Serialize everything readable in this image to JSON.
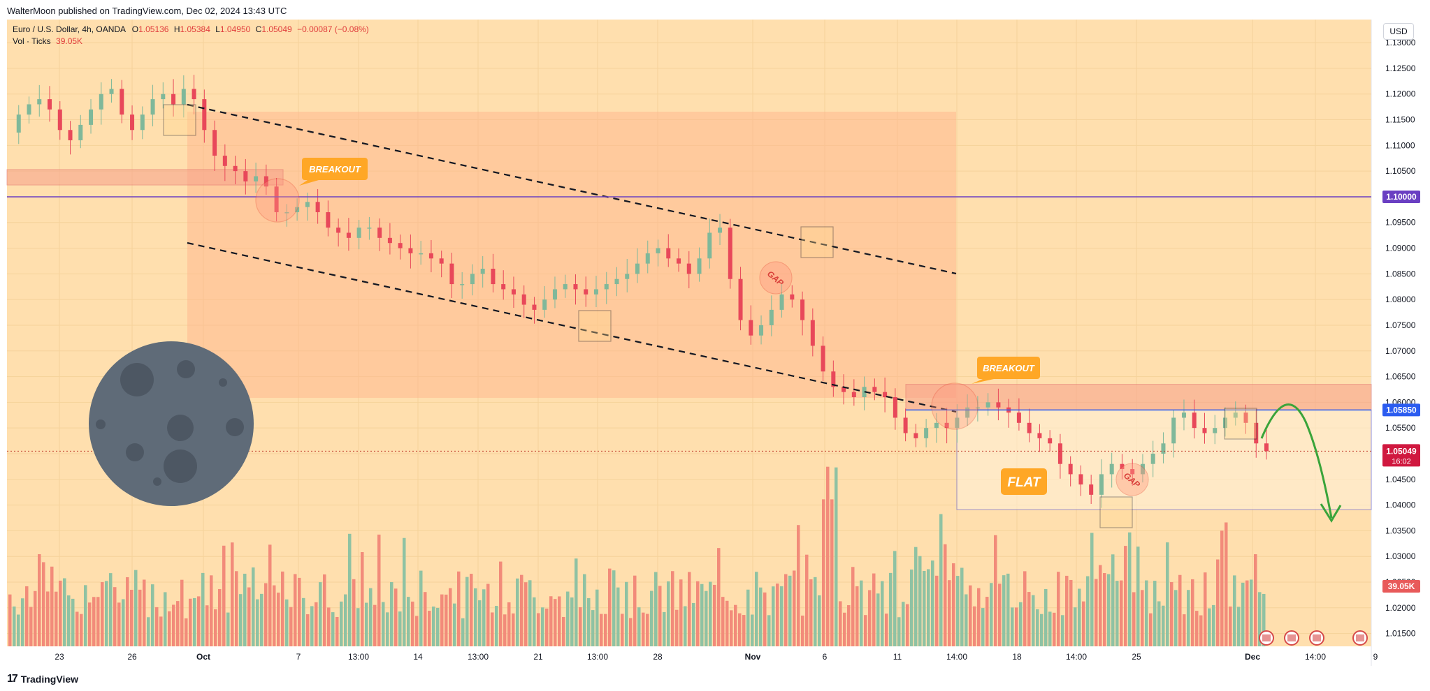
{
  "header": {
    "publisher": "WalterMoon published on TradingView.com, Dec 02, 2024 13:43 UTC"
  },
  "legend": {
    "symbol": "Euro / U.S. Dollar, 4h, OANDA",
    "open_label": "O",
    "open": "1.05136",
    "high_label": "H",
    "high": "1.05384",
    "low_label": "L",
    "low": "1.04950",
    "close_label": "C",
    "close": "1.05049",
    "change": "−0.00087 (−0.08%)",
    "vol_label": "Vol · Ticks",
    "vol": "39.05K"
  },
  "currency_button": "USD",
  "footer": {
    "brand": "TradingView",
    "brand_mark": "17"
  },
  "colors": {
    "up": "#7fb89a",
    "down": "#e8485a",
    "vol_up": "#8fc2a3",
    "vol_down": "#f28b7a",
    "background": "#ffdfae",
    "channel_fill": "#ffb28a",
    "zone_fill": "#f6a08a",
    "purple_line": "#6a3fc2",
    "blue_line": "#2b5cf0",
    "price_label": "#d0183f",
    "callout": "#ffa726",
    "arrow": "#3aa43a",
    "moon": "#5f6b78"
  },
  "chart_data": {
    "type": "candlestick",
    "symbol": "EUR/USD",
    "timeframe": "4h",
    "y_ticks": [
      "1.13000",
      "1.12500",
      "1.12000",
      "1.11500",
      "1.11000",
      "1.10500",
      "1.10000",
      "1.09500",
      "1.09000",
      "1.08500",
      "1.08000",
      "1.07500",
      "1.07000",
      "1.06500",
      "1.06000",
      "1.05500",
      "1.05000",
      "1.04500",
      "1.04000",
      "1.03500",
      "1.03000",
      "1.02500",
      "1.02000",
      "1.01500"
    ],
    "x_ticks": [
      "23",
      "26",
      "Oct",
      "7",
      "13:00",
      "14",
      "13:00",
      "21",
      "13:00",
      "28",
      "Nov",
      "6",
      "11",
      "14:00",
      "18",
      "14:00",
      "25",
      "Dec",
      "14:00",
      "9"
    ],
    "ylim": [
      1.0125,
      1.1345
    ],
    "price_labels": {
      "level_1": "1.10000",
      "level_2": "1.05850",
      "last": "1.05049",
      "countdown": "16:02",
      "volume": "39.05K"
    },
    "annotations": {
      "breakout_1": "BREAKOUT",
      "breakout_2": "BREAKOUT",
      "flat": "FLAT",
      "gap_1": "GAP",
      "gap_2": "GAP"
    },
    "candles_approx_close_path": [
      1.1125,
      1.116,
      1.118,
      1.119,
      1.117,
      1.113,
      1.111,
      1.114,
      1.117,
      1.12,
      1.121,
      1.116,
      1.113,
      1.116,
      1.119,
      1.12,
      1.118,
      1.121,
      1.119,
      1.113,
      1.108,
      1.106,
      1.105,
      1.103,
      1.104,
      1.102,
      1.097,
      1.097,
      1.098,
      1.099,
      1.097,
      1.094,
      1.093,
      1.092,
      1.094,
      1.094,
      1.092,
      1.091,
      1.09,
      1.089,
      1.089,
      1.088,
      1.087,
      1.083,
      1.083,
      1.085,
      1.086,
      1.083,
      1.082,
      1.081,
      1.079,
      1.078,
      1.08,
      1.082,
      1.083,
      1.082,
      1.081,
      1.082,
      1.083,
      1.084,
      1.085,
      1.087,
      1.089,
      1.09,
      1.088,
      1.087,
      1.085,
      1.088,
      1.093,
      1.094,
      1.084,
      1.076,
      1.073,
      1.075,
      1.078,
      1.081,
      1.08,
      1.076,
      1.071,
      1.066,
      1.063,
      1.062,
      1.061,
      1.063,
      1.062,
      1.061,
      1.057,
      1.054,
      1.053,
      1.055,
      1.056,
      1.055,
      1.057,
      1.059,
      1.059,
      1.06,
      1.059,
      1.058,
      1.056,
      1.054,
      1.053,
      1.052,
      1.048,
      1.046,
      1.044,
      1.042,
      1.046,
      1.048,
      1.047,
      1.046,
      1.048,
      1.05,
      1.052,
      1.057,
      1.058,
      1.055,
      1.054,
      1.055,
      1.057,
      1.058,
      1.056,
      1.052,
      1.05049
    ]
  }
}
